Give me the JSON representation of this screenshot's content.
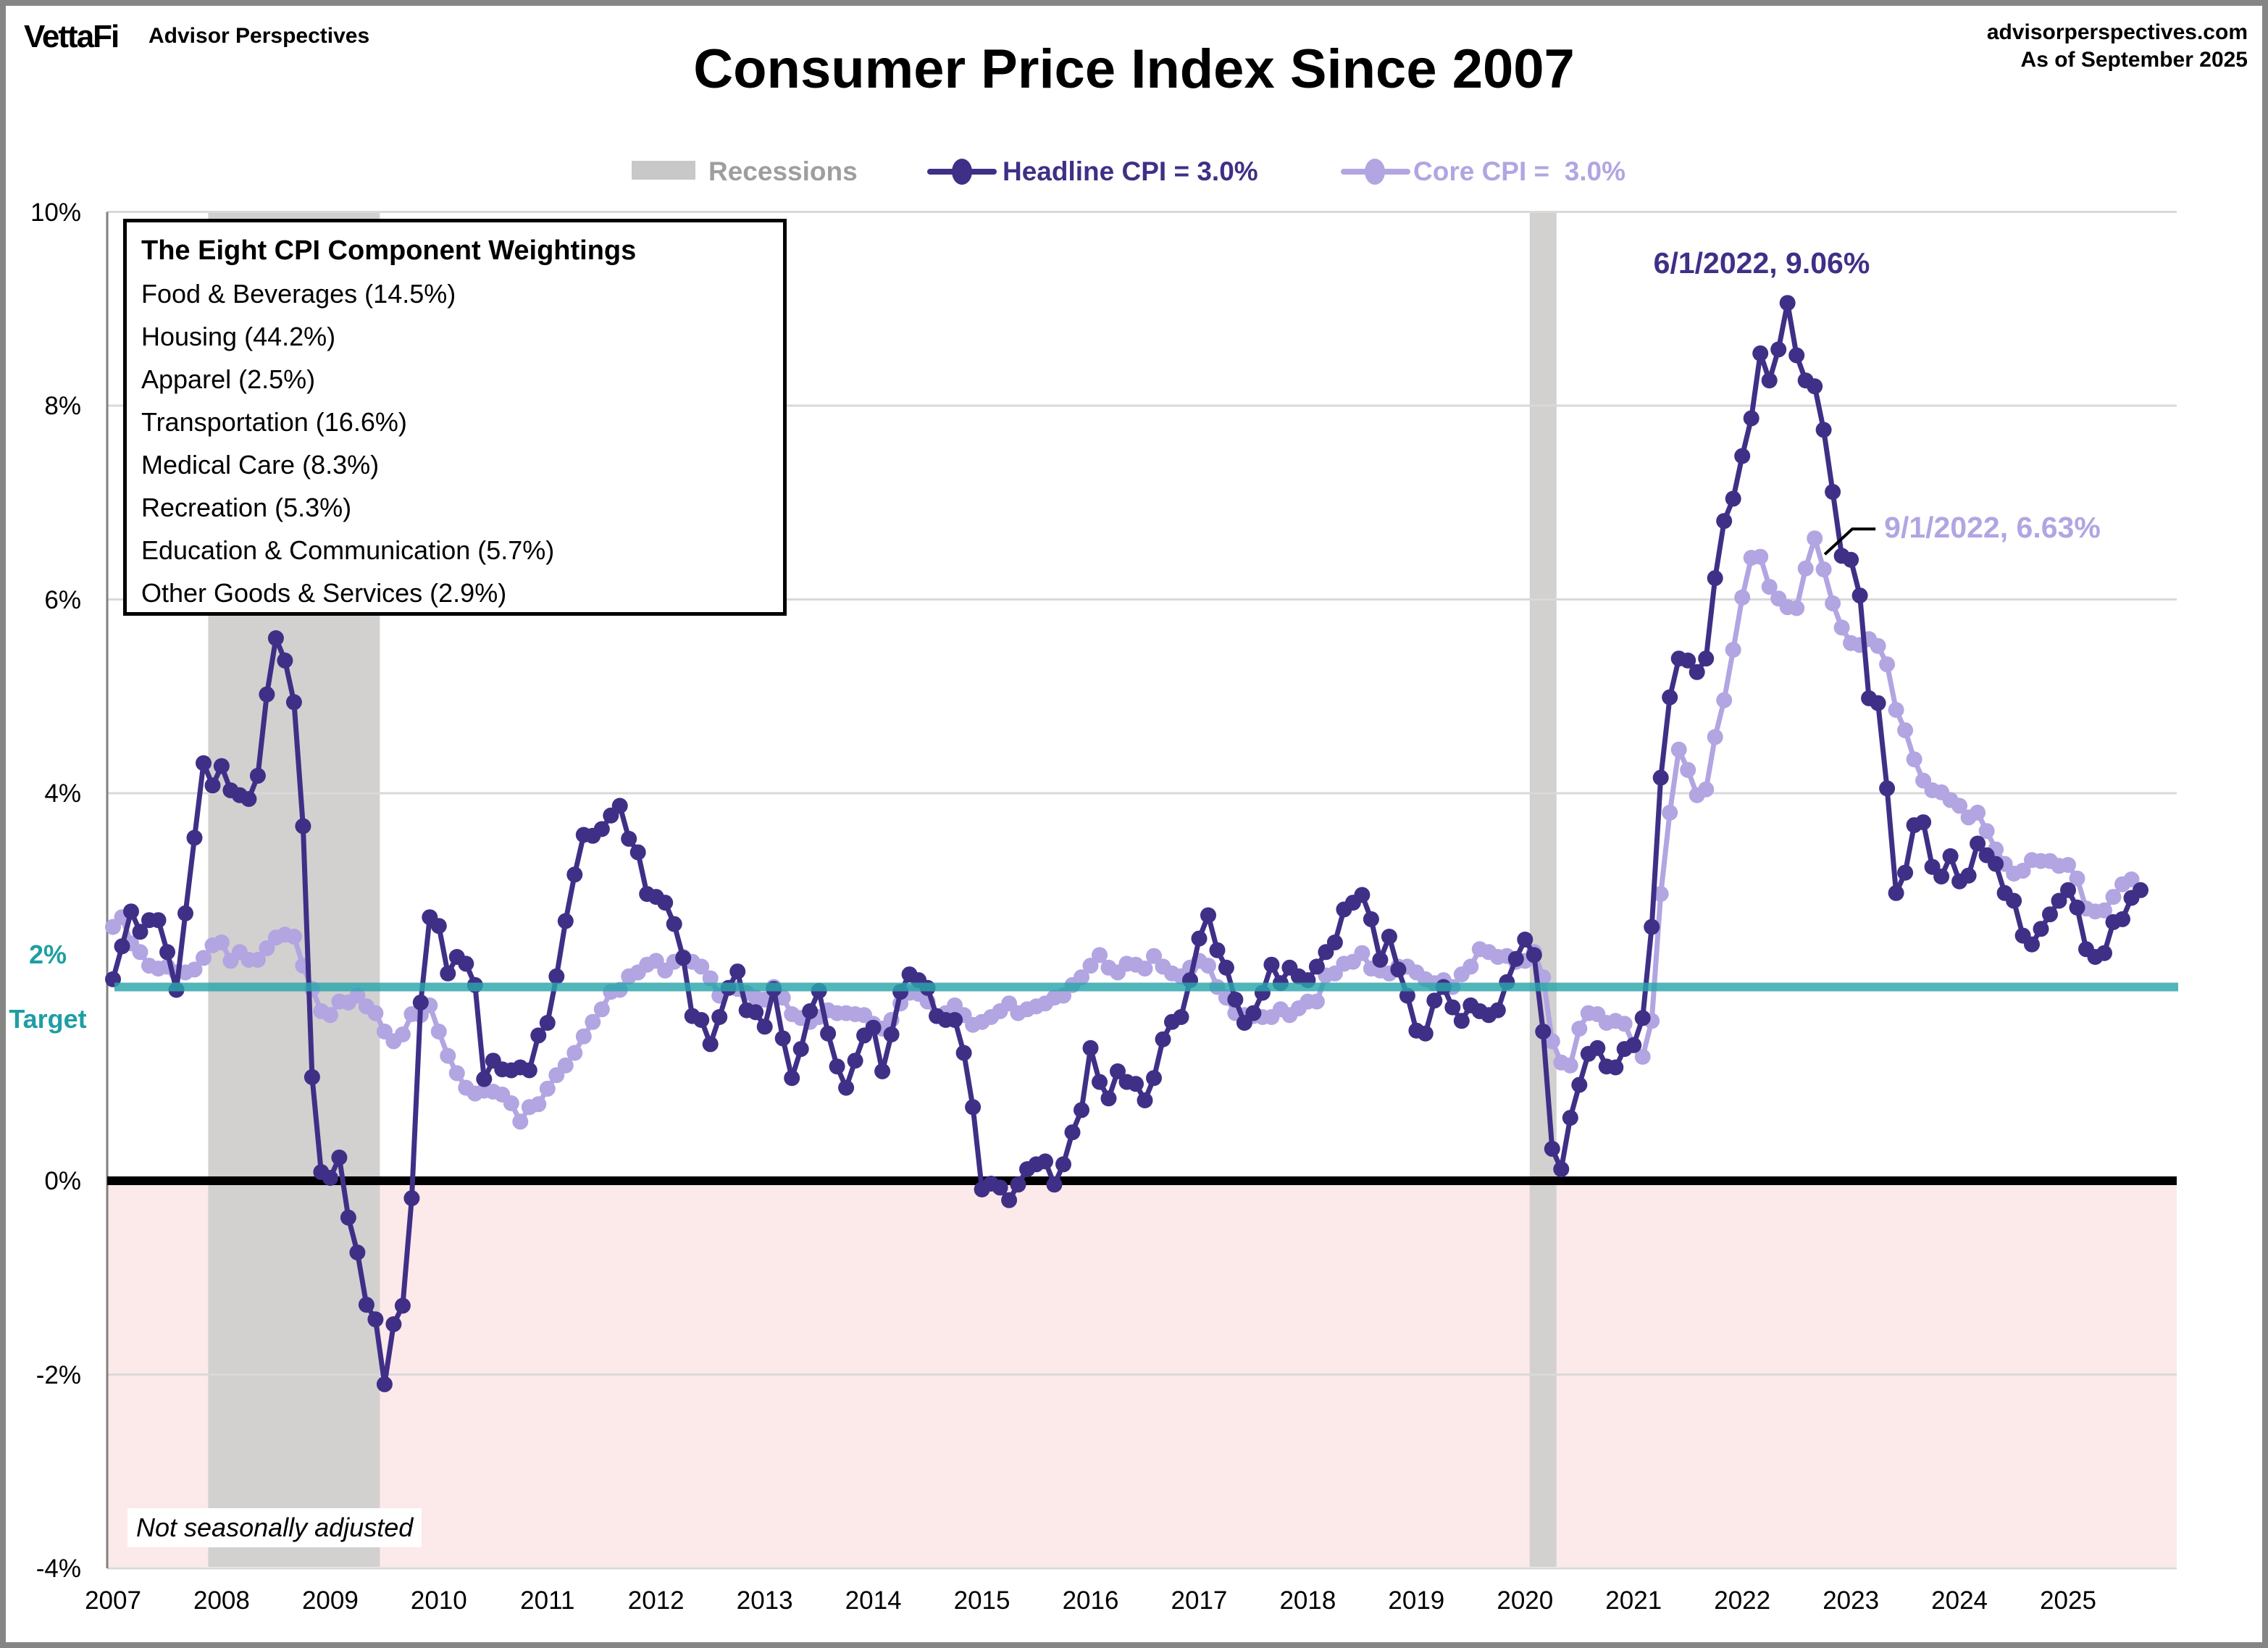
{
  "header": {
    "logo": "VettaFi",
    "logo_sub": "Advisor Perspectives",
    "title": "Consumer Price Index Since 2007",
    "source_line1": "advisorperspectives.com",
    "source_line2": "As of September 2025"
  },
  "legend": {
    "recessions": "Recessions",
    "headline": "Headline CPI = 3.0%",
    "core": "Core CPI =  3.0%"
  },
  "weightings": {
    "title": "The Eight CPI Component Weightings",
    "items": [
      "Food & Beverages (14.5%)",
      "Housing (44.2%)",
      "Apparel (2.5%)",
      "Transportation (16.6%)",
      "Medical Care (8.3%)",
      "Recreation (5.3%)",
      "Education & Communication (5.7%)",
      "Other Goods & Services (2.9%)"
    ]
  },
  "annotations": {
    "headline_peak": "6/1/2022, 9.06%",
    "core_peak": "9/1/2022, 6.63%"
  },
  "target_label": {
    "line1": "2%",
    "line2": "Target"
  },
  "footnote": "Not seasonally adjusted",
  "colors": {
    "headline": "#402F86",
    "core": "#B2A5E2",
    "teal": "#2BA6AB",
    "recession_band": "#D3D0D0",
    "legend_gray": "#9E9E9E",
    "below_zero_fill": "#FCE9E9",
    "gridline": "#D9D9D9",
    "axis_border": "#808080",
    "zero_line": "#000000"
  },
  "chart_data": {
    "type": "line",
    "title": "Consumer Price Index Since 2007",
    "start_month": "2007-01",
    "end_month": "2025-09",
    "ylim": [
      -4,
      10
    ],
    "grid": "horizontal-only",
    "target_value": 2,
    "x_tick_labels": [
      "2007",
      "2008",
      "2009",
      "2010",
      "2011",
      "2012",
      "2013",
      "2014",
      "2015",
      "2016",
      "2017",
      "2018",
      "2019",
      "2020",
      "2021",
      "2022",
      "2023",
      "2024",
      "2025"
    ],
    "y_ticks": [
      {
        "v": 10,
        "label": "10%"
      },
      {
        "v": 8,
        "label": "8%"
      },
      {
        "v": 6,
        "label": "6%"
      },
      {
        "v": 4,
        "label": "4%"
      },
      {
        "v": 2,
        "label": "2%"
      },
      {
        "v": 0,
        "label": "0%"
      },
      {
        "v": -2,
        "label": "-2%"
      },
      {
        "v": -4,
        "label": "-4%"
      }
    ],
    "recessions": [
      {
        "from": "2007-12",
        "to": "2009-06"
      },
      {
        "from": "2020-02",
        "to": "2020-04"
      }
    ],
    "series": [
      {
        "name": "Headline CPI",
        "current": 3.0,
        "peak": {
          "date": "2022-06",
          "value": 9.06
        },
        "values": [
          2.08,
          2.42,
          2.78,
          2.57,
          2.69,
          2.69,
          2.36,
          1.97,
          2.76,
          3.54,
          4.31,
          4.08,
          4.28,
          4.03,
          3.98,
          3.94,
          4.18,
          5.02,
          5.6,
          5.37,
          4.94,
          3.66,
          1.07,
          0.09,
          0.03,
          0.24,
          -0.38,
          -0.74,
          -1.28,
          -1.43,
          -2.1,
          -1.48,
          -1.29,
          -0.18,
          1.84,
          2.72,
          2.63,
          2.14,
          2.31,
          2.24,
          2.02,
          1.05,
          1.24,
          1.15,
          1.14,
          1.17,
          1.14,
          1.5,
          1.63,
          2.11,
          2.68,
          3.16,
          3.57,
          3.56,
          3.63,
          3.77,
          3.87,
          3.53,
          3.39,
          2.96,
          2.93,
          2.87,
          2.65,
          2.3,
          1.7,
          1.66,
          1.41,
          1.69,
          1.99,
          2.16,
          1.76,
          1.74,
          1.59,
          1.98,
          1.47,
          1.06,
          1.36,
          1.75,
          1.96,
          1.52,
          1.18,
          0.96,
          1.24,
          1.5,
          1.58,
          1.13,
          1.51,
          1.95,
          2.13,
          2.07,
          1.99,
          1.7,
          1.66,
          1.66,
          1.32,
          0.76,
          -0.09,
          -0.03,
          -0.07,
          -0.2,
          -0.04,
          0.12,
          0.17,
          0.2,
          -0.04,
          0.17,
          0.5,
          0.73,
          1.37,
          1.02,
          0.85,
          1.13,
          1.02,
          1.0,
          0.83,
          1.06,
          1.46,
          1.64,
          1.69,
          2.07,
          2.5,
          2.74,
          2.38,
          2.2,
          1.87,
          1.63,
          1.73,
          1.94,
          2.23,
          2.04,
          2.2,
          2.11,
          2.07,
          2.21,
          2.36,
          2.46,
          2.8,
          2.87,
          2.95,
          2.7,
          2.28,
          2.52,
          2.18,
          1.91,
          1.55,
          1.52,
          1.86,
          2.0,
          1.79,
          1.65,
          1.81,
          1.75,
          1.71,
          1.76,
          2.05,
          2.29,
          2.49,
          2.33,
          1.54,
          0.33,
          0.12,
          0.65,
          0.99,
          1.31,
          1.37,
          1.18,
          1.17,
          1.36,
          1.4,
          1.68,
          2.62,
          4.16,
          4.99,
          5.39,
          5.37,
          5.25,
          5.39,
          6.22,
          6.81,
          7.04,
          7.48,
          7.87,
          8.54,
          8.26,
          8.58,
          9.06,
          8.52,
          8.26,
          8.2,
          7.75,
          7.11,
          6.45,
          6.41,
          6.04,
          4.98,
          4.93,
          4.05,
          2.97,
          3.18,
          3.67,
          3.7,
          3.24,
          3.14,
          3.35,
          3.09,
          3.15,
          3.48,
          3.36,
          3.27,
          2.97,
          2.89,
          2.53,
          2.44,
          2.6,
          2.75,
          2.89,
          3.0,
          2.82,
          2.39,
          2.31,
          2.35,
          2.67,
          2.7,
          2.92,
          3.0
        ]
      },
      {
        "name": "Core CPI",
        "current": 3.0,
        "peak": {
          "date": "2022-09",
          "value": 6.63
        },
        "values": [
          2.62,
          2.72,
          2.45,
          2.36,
          2.22,
          2.19,
          2.21,
          2.15,
          2.15,
          2.18,
          2.3,
          2.43,
          2.46,
          2.27,
          2.36,
          2.28,
          2.28,
          2.4,
          2.51,
          2.54,
          2.52,
          2.22,
          1.98,
          1.75,
          1.71,
          1.85,
          1.84,
          1.91,
          1.8,
          1.73,
          1.54,
          1.44,
          1.51,
          1.72,
          1.71,
          1.81,
          1.54,
          1.29,
          1.11,
          0.96,
          0.9,
          0.93,
          0.92,
          0.89,
          0.8,
          0.61,
          0.76,
          0.79,
          0.95,
          1.09,
          1.19,
          1.32,
          1.49,
          1.64,
          1.77,
          1.95,
          1.97,
          2.11,
          2.15,
          2.23,
          2.27,
          2.17,
          2.26,
          2.31,
          2.26,
          2.21,
          2.09,
          1.91,
          1.99,
          1.98,
          1.94,
          1.89,
          1.87,
          2.0,
          1.89,
          1.72,
          1.68,
          1.64,
          1.69,
          1.76,
          1.73,
          1.73,
          1.72,
          1.71,
          1.62,
          1.57,
          1.66,
          1.83,
          1.94,
          1.93,
          1.85,
          1.7,
          1.73,
          1.81,
          1.71,
          1.61,
          1.64,
          1.69,
          1.75,
          1.83,
          1.73,
          1.77,
          1.8,
          1.83,
          1.89,
          1.91,
          2.02,
          2.1,
          2.22,
          2.33,
          2.2,
          2.15,
          2.24,
          2.23,
          2.19,
          2.32,
          2.21,
          2.14,
          2.11,
          2.2,
          2.27,
          2.22,
          2.0,
          1.89,
          1.73,
          1.71,
          1.7,
          1.69,
          1.69,
          1.77,
          1.71,
          1.78,
          1.85,
          1.85,
          2.12,
          2.14,
          2.24,
          2.26,
          2.35,
          2.19,
          2.17,
          2.14,
          2.21,
          2.21,
          2.15,
          2.08,
          2.04,
          2.07,
          2.0,
          2.13,
          2.21,
          2.39,
          2.36,
          2.31,
          2.32,
          2.26,
          2.27,
          2.36,
          2.1,
          1.44,
          1.22,
          1.19,
          1.57,
          1.73,
          1.72,
          1.63,
          1.65,
          1.62,
          1.4,
          1.28,
          1.65,
          2.96,
          3.8,
          4.45,
          4.24,
          3.98,
          4.04,
          4.58,
          4.96,
          5.48,
          6.02,
          6.43,
          6.44,
          6.13,
          6.01,
          5.92,
          5.91,
          6.32,
          6.63,
          6.31,
          5.96,
          5.71,
          5.55,
          5.53,
          5.59,
          5.52,
          5.33,
          4.86,
          4.65,
          4.35,
          4.13,
          4.03,
          4.01,
          3.93,
          3.87,
          3.75,
          3.8,
          3.61,
          3.42,
          3.27,
          3.17,
          3.2,
          3.31,
          3.3,
          3.3,
          3.25,
          3.26,
          3.12,
          2.81,
          2.78,
          2.79,
          2.93,
          3.06,
          3.11,
          3.0
        ]
      }
    ]
  }
}
